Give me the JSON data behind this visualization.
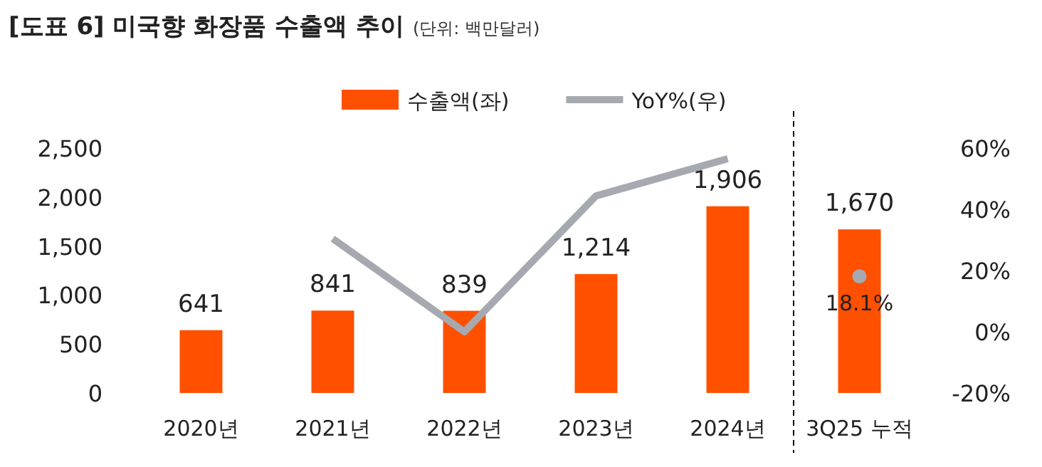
{
  "chart_data": {
    "type": "bar",
    "title": "[도표 6] 미국향 화장품 수출액 추이",
    "subtitle": "(단위: 백만달러)",
    "categories": [
      "2020년",
      "2021년",
      "2022년",
      "2023년",
      "2024년",
      "3Q25 누적"
    ],
    "series": [
      {
        "name": "수출액(좌)",
        "color": "#ff5000",
        "values": [
          641,
          841,
          839,
          1214,
          1906,
          1670
        ],
        "value_labels": [
          "641",
          "841",
          "839",
          "1,214",
          "1,906",
          "1,670"
        ]
      },
      {
        "name": "YoY%(우)",
        "type": "line",
        "axis": "y2",
        "color": "#a6a9b0",
        "values": [
          null,
          30.4,
          0,
          44.4,
          56.5,
          null
        ]
      },
      {
        "type": "scatter",
        "axis": "y2",
        "color": "#a6a9b0",
        "values": [
          null,
          null,
          null,
          null,
          null,
          18.1
        ],
        "value_labels": [
          null,
          null,
          null,
          null,
          null,
          "18.1%"
        ]
      }
    ],
    "ylim": [
      0,
      2500
    ],
    "yticks": [
      0,
      500,
      {
        "value": 1000,
        "label": "1,000"
      },
      {
        "value": 1500,
        "label": "1,500"
      },
      {
        "value": 2000,
        "label": "2,000"
      },
      {
        "value": 2500,
        "label": "2,500"
      }
    ],
    "y2lim": [
      -20,
      60
    ],
    "y2ticks": [
      {
        "value": -20,
        "label": "-20%"
      },
      {
        "value": 0,
        "label": "0%"
      },
      {
        "value": 20,
        "label": "20%"
      },
      {
        "value": 40,
        "label": "40%"
      },
      {
        "value": 60,
        "label": "60%"
      }
    ],
    "legend": "top",
    "grid": false
  }
}
